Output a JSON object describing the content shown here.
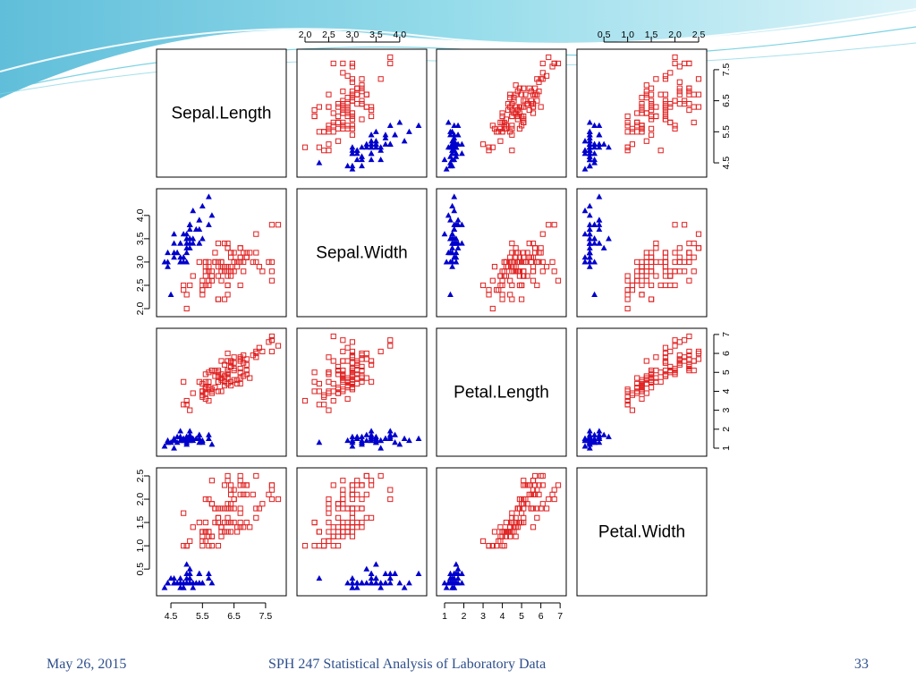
{
  "footer": {
    "date": "May 26, 2015",
    "course": "SPH 247 Statistical Analysis of Laboratory Data",
    "page_number": "33"
  },
  "colors": {
    "setosa_marker": "#0000cc",
    "other_marker": "#e02020",
    "panel_border": "#000000",
    "header_wave": "#5bc8dc",
    "footer_text": "#2e4f8c"
  },
  "chart_data": {
    "type": "scatter",
    "subtype": "scatterplot-matrix",
    "variables": [
      "Sepal.Length",
      "Sepal.Width",
      "Petal.Length",
      "Petal.Width"
    ],
    "ranges": {
      "Sepal.Length": [
        4.3,
        7.9
      ],
      "Sepal.Width": [
        2.0,
        4.4
      ],
      "Petal.Length": [
        1.0,
        6.9
      ],
      "Petal.Width": [
        0.1,
        2.5
      ]
    },
    "axis_ticks": {
      "top": [
        {
          "variable": "Sepal.Width",
          "ticks": [
            "2.0",
            "2.5",
            "3.0",
            "3.5",
            "4.0"
          ]
        },
        {
          "variable": "Petal.Width",
          "ticks": [
            "0.5",
            "1.0",
            "1.5",
            "2.0",
            "2.5"
          ]
        }
      ],
      "bottom": [
        {
          "variable": "Sepal.Length",
          "ticks": [
            "4.5",
            "5.5",
            "6.5",
            "7.5"
          ]
        },
        {
          "variable": "Petal.Length",
          "ticks": [
            "1",
            "2",
            "3",
            "4",
            "5",
            "6",
            "7"
          ]
        }
      ],
      "left": [
        {
          "variable": "Sepal.Width",
          "ticks": [
            "2.0",
            "2.5",
            "3.0",
            "3.5",
            "4.0"
          ]
        },
        {
          "variable": "Petal.Width",
          "ticks": [
            "0.5",
            "1.0",
            "1.5",
            "2.0",
            "2.5"
          ]
        }
      ],
      "right": [
        {
          "variable": "Sepal.Length",
          "ticks": [
            "4.5",
            "5.5",
            "6.5",
            "7.5"
          ]
        },
        {
          "variable": "Petal.Length",
          "ticks": [
            "1",
            "2",
            "3",
            "4",
            "5",
            "6",
            "7"
          ]
        }
      ]
    },
    "groups": [
      {
        "marker": "filled-triangle",
        "color": "#0000cc"
      },
      {
        "marker": "open-square",
        "color": "#e02020"
      }
    ],
    "points": {
      "columns": [
        "Sepal.Length",
        "Sepal.Width",
        "Petal.Length",
        "Petal.Width",
        "group"
      ],
      "rows": [
        [
          5.1,
          3.5,
          1.4,
          0.2,
          0
        ],
        [
          4.9,
          3.0,
          1.4,
          0.2,
          0
        ],
        [
          4.7,
          3.2,
          1.3,
          0.2,
          0
        ],
        [
          4.6,
          3.1,
          1.5,
          0.2,
          0
        ],
        [
          5.0,
          3.6,
          1.4,
          0.2,
          0
        ],
        [
          5.4,
          3.9,
          1.7,
          0.4,
          0
        ],
        [
          4.6,
          3.4,
          1.4,
          0.3,
          0
        ],
        [
          5.0,
          3.4,
          1.5,
          0.2,
          0
        ],
        [
          4.4,
          2.9,
          1.4,
          0.2,
          0
        ],
        [
          4.9,
          3.1,
          1.5,
          0.1,
          0
        ],
        [
          5.4,
          3.7,
          1.5,
          0.2,
          0
        ],
        [
          4.8,
          3.4,
          1.6,
          0.2,
          0
        ],
        [
          4.8,
          3.0,
          1.4,
          0.1,
          0
        ],
        [
          4.3,
          3.0,
          1.1,
          0.1,
          0
        ],
        [
          5.8,
          4.0,
          1.2,
          0.2,
          0
        ],
        [
          5.7,
          4.4,
          1.5,
          0.4,
          0
        ],
        [
          5.4,
          3.9,
          1.3,
          0.4,
          0
        ],
        [
          5.1,
          3.5,
          1.4,
          0.3,
          0
        ],
        [
          5.7,
          3.8,
          1.7,
          0.3,
          0
        ],
        [
          5.1,
          3.8,
          1.5,
          0.3,
          0
        ],
        [
          5.4,
          3.4,
          1.7,
          0.2,
          0
        ],
        [
          5.1,
          3.7,
          1.5,
          0.4,
          0
        ],
        [
          4.6,
          3.6,
          1.0,
          0.2,
          0
        ],
        [
          5.1,
          3.3,
          1.7,
          0.5,
          0
        ],
        [
          4.8,
          3.4,
          1.9,
          0.2,
          0
        ],
        [
          5.0,
          3.0,
          1.6,
          0.2,
          0
        ],
        [
          5.0,
          3.4,
          1.6,
          0.4,
          0
        ],
        [
          5.2,
          3.5,
          1.5,
          0.2,
          0
        ],
        [
          5.2,
          3.4,
          1.4,
          0.2,
          0
        ],
        [
          4.7,
          3.2,
          1.6,
          0.2,
          0
        ],
        [
          4.8,
          3.1,
          1.6,
          0.2,
          0
        ],
        [
          5.4,
          3.4,
          1.5,
          0.4,
          0
        ],
        [
          5.2,
          4.1,
          1.5,
          0.1,
          0
        ],
        [
          5.5,
          4.2,
          1.4,
          0.2,
          0
        ],
        [
          4.9,
          3.1,
          1.5,
          0.2,
          0
        ],
        [
          5.0,
          3.2,
          1.2,
          0.2,
          0
        ],
        [
          5.5,
          3.5,
          1.3,
          0.2,
          0
        ],
        [
          4.9,
          3.6,
          1.4,
          0.1,
          0
        ],
        [
          4.4,
          3.0,
          1.3,
          0.2,
          0
        ],
        [
          5.1,
          3.4,
          1.5,
          0.2,
          0
        ],
        [
          5.0,
          3.5,
          1.3,
          0.3,
          0
        ],
        [
          4.5,
          2.3,
          1.3,
          0.3,
          0
        ],
        [
          4.4,
          3.2,
          1.3,
          0.2,
          0
        ],
        [
          5.0,
          3.5,
          1.6,
          0.6,
          0
        ],
        [
          5.1,
          3.8,
          1.9,
          0.4,
          0
        ],
        [
          4.8,
          3.0,
          1.4,
          0.3,
          0
        ],
        [
          5.1,
          3.8,
          1.6,
          0.2,
          0
        ],
        [
          4.6,
          3.2,
          1.4,
          0.2,
          0
        ],
        [
          5.3,
          3.7,
          1.5,
          0.2,
          0
        ],
        [
          5.0,
          3.3,
          1.4,
          0.2,
          0
        ],
        [
          7.0,
          3.2,
          4.7,
          1.4,
          1
        ],
        [
          6.4,
          3.2,
          4.5,
          1.5,
          1
        ],
        [
          6.9,
          3.1,
          4.9,
          1.5,
          1
        ],
        [
          5.5,
          2.3,
          4.0,
          1.3,
          1
        ],
        [
          6.5,
          2.8,
          4.6,
          1.5,
          1
        ],
        [
          5.7,
          2.8,
          4.5,
          1.3,
          1
        ],
        [
          6.3,
          3.3,
          4.7,
          1.6,
          1
        ],
        [
          4.9,
          2.4,
          3.3,
          1.0,
          1
        ],
        [
          6.6,
          2.9,
          4.6,
          1.3,
          1
        ],
        [
          5.2,
          2.7,
          3.9,
          1.4,
          1
        ],
        [
          5.0,
          2.0,
          3.5,
          1.0,
          1
        ],
        [
          5.9,
          3.0,
          4.2,
          1.5,
          1
        ],
        [
          6.0,
          2.2,
          4.0,
          1.0,
          1
        ],
        [
          6.1,
          2.9,
          4.7,
          1.4,
          1
        ],
        [
          5.6,
          2.9,
          3.6,
          1.3,
          1
        ],
        [
          6.7,
          3.1,
          4.4,
          1.4,
          1
        ],
        [
          5.6,
          3.0,
          4.5,
          1.5,
          1
        ],
        [
          5.8,
          2.7,
          4.1,
          1.0,
          1
        ],
        [
          6.2,
          2.2,
          4.5,
          1.5,
          1
        ],
        [
          5.6,
          2.5,
          3.9,
          1.1,
          1
        ],
        [
          5.9,
          3.2,
          4.8,
          1.8,
          1
        ],
        [
          6.1,
          2.8,
          4.0,
          1.3,
          1
        ],
        [
          6.3,
          2.5,
          4.9,
          1.5,
          1
        ],
        [
          6.1,
          2.8,
          4.7,
          1.2,
          1
        ],
        [
          6.4,
          2.9,
          4.3,
          1.3,
          1
        ],
        [
          6.6,
          3.0,
          4.4,
          1.4,
          1
        ],
        [
          6.8,
          2.8,
          4.8,
          1.4,
          1
        ],
        [
          6.7,
          3.0,
          5.0,
          1.7,
          1
        ],
        [
          6.0,
          2.9,
          4.5,
          1.5,
          1
        ],
        [
          5.7,
          2.6,
          3.5,
          1.0,
          1
        ],
        [
          5.5,
          2.4,
          3.8,
          1.1,
          1
        ],
        [
          5.5,
          2.4,
          3.7,
          1.0,
          1
        ],
        [
          5.8,
          2.7,
          3.9,
          1.2,
          1
        ],
        [
          6.0,
          2.7,
          5.1,
          1.6,
          1
        ],
        [
          5.4,
          3.0,
          4.5,
          1.5,
          1
        ],
        [
          6.0,
          3.4,
          4.5,
          1.6,
          1
        ],
        [
          6.7,
          3.1,
          4.7,
          1.5,
          1
        ],
        [
          6.3,
          2.3,
          4.4,
          1.3,
          1
        ],
        [
          5.6,
          3.0,
          4.1,
          1.3,
          1
        ],
        [
          5.5,
          2.5,
          4.0,
          1.3,
          1
        ],
        [
          5.5,
          2.6,
          4.4,
          1.2,
          1
        ],
        [
          6.1,
          3.0,
          4.6,
          1.4,
          1
        ],
        [
          5.8,
          2.6,
          4.0,
          1.2,
          1
        ],
        [
          5.0,
          2.3,
          3.3,
          1.0,
          1
        ],
        [
          5.6,
          2.7,
          4.2,
          1.3,
          1
        ],
        [
          5.7,
          3.0,
          4.2,
          1.2,
          1
        ],
        [
          5.7,
          2.9,
          4.2,
          1.3,
          1
        ],
        [
          6.2,
          2.9,
          4.3,
          1.3,
          1
        ],
        [
          5.1,
          2.5,
          3.0,
          1.1,
          1
        ],
        [
          5.7,
          2.8,
          4.1,
          1.3,
          1
        ],
        [
          6.3,
          3.3,
          6.0,
          2.5,
          1
        ],
        [
          5.8,
          2.7,
          5.1,
          1.9,
          1
        ],
        [
          7.1,
          3.0,
          5.9,
          2.1,
          1
        ],
        [
          6.3,
          2.9,
          5.6,
          1.8,
          1
        ],
        [
          6.5,
          3.0,
          5.8,
          2.2,
          1
        ],
        [
          7.6,
          3.0,
          6.6,
          2.1,
          1
        ],
        [
          4.9,
          2.5,
          4.5,
          1.7,
          1
        ],
        [
          7.3,
          2.9,
          6.3,
          1.8,
          1
        ],
        [
          6.7,
          2.5,
          5.8,
          1.8,
          1
        ],
        [
          7.2,
          3.6,
          6.1,
          2.5,
          1
        ],
        [
          6.5,
          3.2,
          5.1,
          2.0,
          1
        ],
        [
          6.4,
          2.7,
          5.3,
          1.9,
          1
        ],
        [
          6.8,
          3.0,
          5.5,
          2.1,
          1
        ],
        [
          5.7,
          2.5,
          5.0,
          2.0,
          1
        ],
        [
          5.8,
          2.8,
          5.1,
          2.4,
          1
        ],
        [
          6.4,
          3.2,
          5.3,
          2.3,
          1
        ],
        [
          6.5,
          3.0,
          5.5,
          1.8,
          1
        ],
        [
          7.7,
          3.8,
          6.7,
          2.2,
          1
        ],
        [
          7.7,
          2.6,
          6.9,
          2.3,
          1
        ],
        [
          6.0,
          2.2,
          5.0,
          1.5,
          1
        ],
        [
          6.9,
          3.2,
          5.7,
          2.3,
          1
        ],
        [
          5.6,
          2.8,
          4.9,
          2.0,
          1
        ],
        [
          7.7,
          2.8,
          6.7,
          2.0,
          1
        ],
        [
          6.3,
          2.7,
          4.9,
          1.8,
          1
        ],
        [
          6.7,
          3.3,
          5.7,
          2.1,
          1
        ],
        [
          7.2,
          3.2,
          6.0,
          1.8,
          1
        ],
        [
          6.2,
          2.8,
          4.8,
          1.8,
          1
        ],
        [
          6.1,
          3.0,
          4.9,
          1.8,
          1
        ],
        [
          6.4,
          2.8,
          5.6,
          2.1,
          1
        ],
        [
          7.2,
          3.0,
          5.8,
          1.6,
          1
        ],
        [
          7.4,
          2.8,
          6.1,
          1.9,
          1
        ],
        [
          7.9,
          3.8,
          6.4,
          2.0,
          1
        ],
        [
          6.4,
          2.8,
          5.6,
          2.2,
          1
        ],
        [
          6.3,
          2.8,
          5.1,
          1.5,
          1
        ],
        [
          6.1,
          2.6,
          5.6,
          1.4,
          1
        ],
        [
          7.7,
          3.0,
          6.1,
          2.3,
          1
        ],
        [
          6.3,
          3.4,
          5.6,
          2.4,
          1
        ],
        [
          6.4,
          3.1,
          5.5,
          1.8,
          1
        ],
        [
          6.0,
          3.0,
          4.8,
          1.8,
          1
        ],
        [
          6.9,
          3.1,
          5.4,
          2.1,
          1
        ],
        [
          6.7,
          3.1,
          5.6,
          2.4,
          1
        ],
        [
          6.9,
          3.1,
          5.1,
          2.3,
          1
        ],
        [
          5.8,
          2.7,
          5.1,
          1.9,
          1
        ],
        [
          6.8,
          3.2,
          5.9,
          2.3,
          1
        ],
        [
          6.7,
          3.3,
          5.7,
          2.5,
          1
        ],
        [
          6.7,
          3.0,
          5.2,
          2.3,
          1
        ],
        [
          6.3,
          2.5,
          5.0,
          1.9,
          1
        ],
        [
          6.5,
          3.0,
          5.2,
          2.0,
          1
        ],
        [
          6.2,
          3.4,
          5.4,
          2.3,
          1
        ],
        [
          5.9,
          3.0,
          5.1,
          1.8,
          1
        ]
      ]
    }
  }
}
